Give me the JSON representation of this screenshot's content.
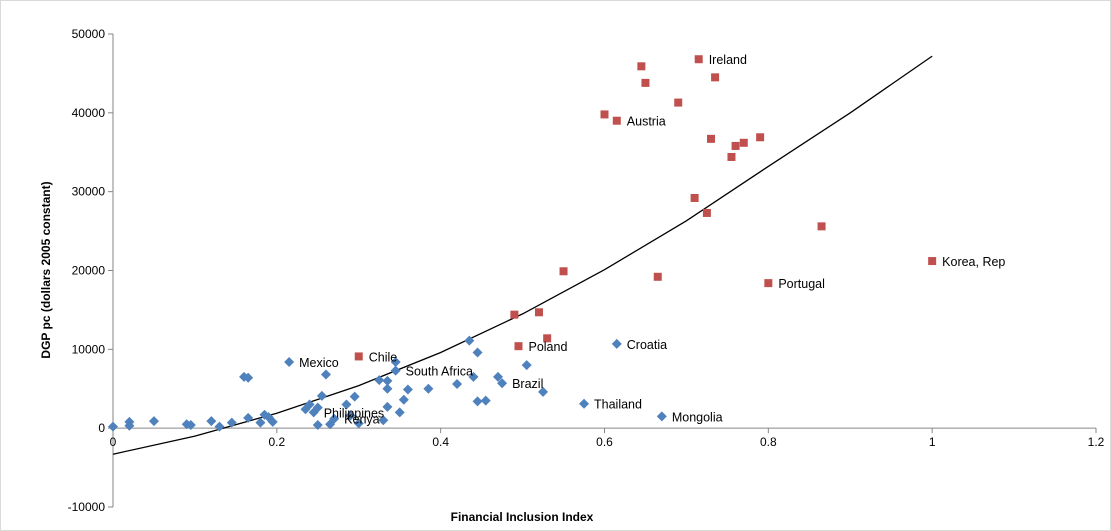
{
  "chart_data": {
    "type": "scatter",
    "title": "",
    "xlabel": "Financial Inclusion Index",
    "ylabel": "DGP pc (dollars 2005 constant)",
    "xlim": [
      0,
      1.2
    ],
    "ylim": [
      -10000,
      50000
    ],
    "x_ticks": [
      "0",
      "0.2",
      "0.4",
      "0.6",
      "0.8",
      "1",
      "1.2"
    ],
    "y_ticks": [
      "-10000",
      "0",
      "10000",
      "20000",
      "30000",
      "40000",
      "50000"
    ],
    "grid": false,
    "legend": "none",
    "colors": {
      "series_blue": "#4f81bd",
      "series_red": "#c0504d",
      "trend": "#000000"
    },
    "series": [
      {
        "marker": "diamond",
        "color": "#4f81bd",
        "points": [
          [
            0.0,
            200
          ],
          [
            0.02,
            300
          ],
          [
            0.02,
            800
          ],
          [
            0.05,
            900
          ],
          [
            0.09,
            500
          ],
          [
            0.095,
            400
          ],
          [
            0.12,
            900
          ],
          [
            0.13,
            200
          ],
          [
            0.145,
            700
          ],
          [
            0.16,
            6500
          ],
          [
            0.165,
            6400
          ],
          [
            0.165,
            1300
          ],
          [
            0.18,
            700
          ],
          [
            0.185,
            1700
          ],
          [
            0.19,
            1400
          ],
          [
            0.195,
            800
          ],
          [
            0.215,
            8400
          ],
          [
            0.235,
            2400
          ],
          [
            0.24,
            3000
          ],
          [
            0.245,
            2000
          ],
          [
            0.25,
            400
          ],
          [
            0.25,
            2600
          ],
          [
            0.255,
            4100
          ],
          [
            0.26,
            6800
          ],
          [
            0.265,
            500
          ],
          [
            0.27,
            1200
          ],
          [
            0.285,
            3000
          ],
          [
            0.29,
            1600
          ],
          [
            0.295,
            4000
          ],
          [
            0.3,
            600
          ],
          [
            0.325,
            6100
          ],
          [
            0.33,
            1000
          ],
          [
            0.335,
            2700
          ],
          [
            0.335,
            5000
          ],
          [
            0.335,
            6000
          ],
          [
            0.345,
            7300
          ],
          [
            0.345,
            8400
          ],
          [
            0.35,
            2000
          ],
          [
            0.355,
            3600
          ],
          [
            0.36,
            4900
          ],
          [
            0.385,
            5000
          ],
          [
            0.42,
            5600
          ],
          [
            0.435,
            11100
          ],
          [
            0.44,
            6500
          ],
          [
            0.445,
            3400
          ],
          [
            0.445,
            9600
          ],
          [
            0.455,
            3500
          ],
          [
            0.47,
            6500
          ],
          [
            0.475,
            5700
          ],
          [
            0.505,
            8000
          ],
          [
            0.525,
            4600
          ],
          [
            0.575,
            3100
          ],
          [
            0.615,
            10700
          ],
          [
            0.67,
            1500
          ]
        ]
      },
      {
        "marker": "square",
        "color": "#c0504d",
        "points": [
          [
            0.3,
            9100
          ],
          [
            0.49,
            14400
          ],
          [
            0.495,
            10400
          ],
          [
            0.52,
            14700
          ],
          [
            0.53,
            11400
          ],
          [
            0.55,
            19900
          ],
          [
            0.6,
            39800
          ],
          [
            0.615,
            39000
          ],
          [
            0.645,
            45900
          ],
          [
            0.65,
            43800
          ],
          [
            0.665,
            19200
          ],
          [
            0.69,
            41300
          ],
          [
            0.71,
            29200
          ],
          [
            0.715,
            46800
          ],
          [
            0.725,
            27300
          ],
          [
            0.73,
            36700
          ],
          [
            0.735,
            44500
          ],
          [
            0.755,
            34400
          ],
          [
            0.76,
            35800
          ],
          [
            0.77,
            36200
          ],
          [
            0.79,
            36900
          ],
          [
            0.8,
            18400
          ],
          [
            0.865,
            25600
          ],
          [
            1.0,
            21200
          ]
        ]
      }
    ],
    "point_labels": [
      {
        "text": "Ireland",
        "x": 0.715,
        "y": 46800
      },
      {
        "text": "Austria",
        "x": 0.615,
        "y": 39000
      },
      {
        "text": "Korea, Rep",
        "x": 1.0,
        "y": 21200
      },
      {
        "text": "Portugal",
        "x": 0.8,
        "y": 18400
      },
      {
        "text": "Croatia",
        "x": 0.615,
        "y": 10700
      },
      {
        "text": "Poland",
        "x": 0.495,
        "y": 10400
      },
      {
        "text": "Chile",
        "x": 0.3,
        "y": 9100
      },
      {
        "text": "Mexico",
        "x": 0.215,
        "y": 8400
      },
      {
        "text": "South Africa",
        "x": 0.345,
        "y": 7300
      },
      {
        "text": "Brazil",
        "x": 0.475,
        "y": 5700
      },
      {
        "text": "Thailand",
        "x": 0.575,
        "y": 3100
      },
      {
        "text": "Mongolia",
        "x": 0.67,
        "y": 1500
      },
      {
        "text": "Philippines",
        "x": 0.245,
        "y": 2000
      },
      {
        "text": "Kenya",
        "x": 0.27,
        "y": 1200
      }
    ],
    "trendline": {
      "type": "polynomial",
      "x": [
        0,
        0.1,
        0.2,
        0.3,
        0.4,
        0.5,
        0.6,
        0.7,
        0.8,
        0.9,
        1.0
      ],
      "y": [
        -3300,
        -1000,
        1900,
        5400,
        9600,
        14500,
        20100,
        26300,
        33200,
        40000,
        47200
      ]
    }
  }
}
